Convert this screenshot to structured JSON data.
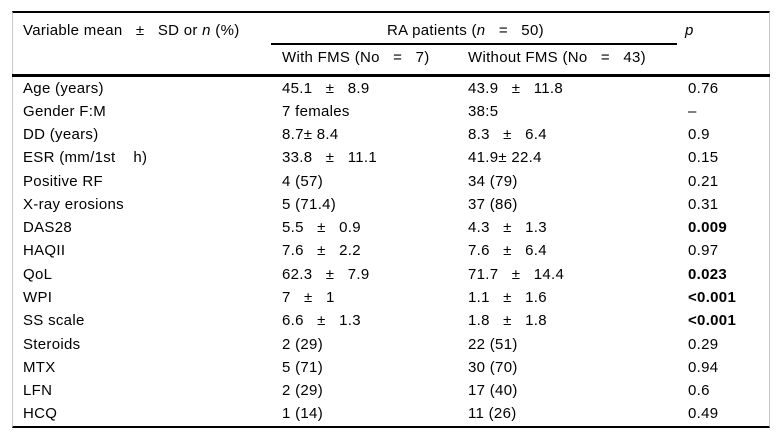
{
  "colors": {
    "background": "#ffffff",
    "text": "#000000",
    "rule_lines": "#000000",
    "side_borders": "#c9c9c9"
  },
  "header": {
    "variable_pre": "Variable mean   ±   SD or ",
    "variable_n": "n",
    "variable_post": " (%)",
    "ra_pre": "RA patients (",
    "ra_n": "n",
    "ra_post": "   =   50)",
    "p_label": "p",
    "with_fms": "With FMS (No   =   7)",
    "without_fms": "Without FMS (No   =   43)"
  },
  "table": {
    "rows": [
      {
        "label": "Age (years)",
        "with_fms": "45.1   ±   8.9",
        "without_fms": "43.9   ±   11.8",
        "p": "0.76",
        "p_bold": false
      },
      {
        "label": "Gender F:M",
        "with_fms": "7 females",
        "without_fms": "38:5",
        "p": "–",
        "p_bold": false
      },
      {
        "label": "DD (years)",
        "with_fms": "8.7± 8.4",
        "without_fms": "8.3   ±   6.4",
        "p": "0.9",
        "p_bold": false
      },
      {
        "label": "ESR (mm/1st    h)",
        "with_fms": "33.8   ±   11.1",
        "without_fms": "41.9± 22.4",
        "p": "0.15",
        "p_bold": false
      },
      {
        "label": "Positive RF",
        "with_fms": "4 (57)",
        "without_fms": "34 (79)",
        "p": "0.21",
        "p_bold": false
      },
      {
        "label": "X-ray erosions",
        "with_fms": "5 (71.4)",
        "without_fms": "37 (86)",
        "p": "0.31",
        "p_bold": false
      },
      {
        "label": "DAS28",
        "with_fms": "5.5   ±   0.9",
        "without_fms": "4.3   ±   1.3",
        "p": "0.009",
        "p_bold": true
      },
      {
        "label": "HAQII",
        "with_fms": "7.6   ±   2.2",
        "without_fms": "7.6   ±   6.4",
        "p": "0.97",
        "p_bold": false
      },
      {
        "label": "QoL",
        "with_fms": "62.3   ±   7.9",
        "without_fms": "71.7   ±   14.4",
        "p": "0.023",
        "p_bold": true
      },
      {
        "label": "WPI",
        "with_fms": "7   ±   1",
        "without_fms": "1.1   ±   1.6",
        "p": "<0.001",
        "p_bold": true
      },
      {
        "label": "SS scale",
        "with_fms": "6.6   ±   1.3",
        "without_fms": "1.8   ±   1.8",
        "p": "<0.001",
        "p_bold": true
      },
      {
        "label": "Steroids",
        "with_fms": "2 (29)",
        "without_fms": "22 (51)",
        "p": "0.29",
        "p_bold": false
      },
      {
        "label": "MTX",
        "with_fms": "5 (71)",
        "without_fms": "30 (70)",
        "p": "0.94",
        "p_bold": false
      },
      {
        "label": "LFN",
        "with_fms": "2 (29)",
        "without_fms": "17 (40)",
        "p": "0.6",
        "p_bold": false
      },
      {
        "label": "HCQ",
        "with_fms": "1 (14)",
        "without_fms": "11 (26)",
        "p": "0.49",
        "p_bold": false
      }
    ]
  }
}
